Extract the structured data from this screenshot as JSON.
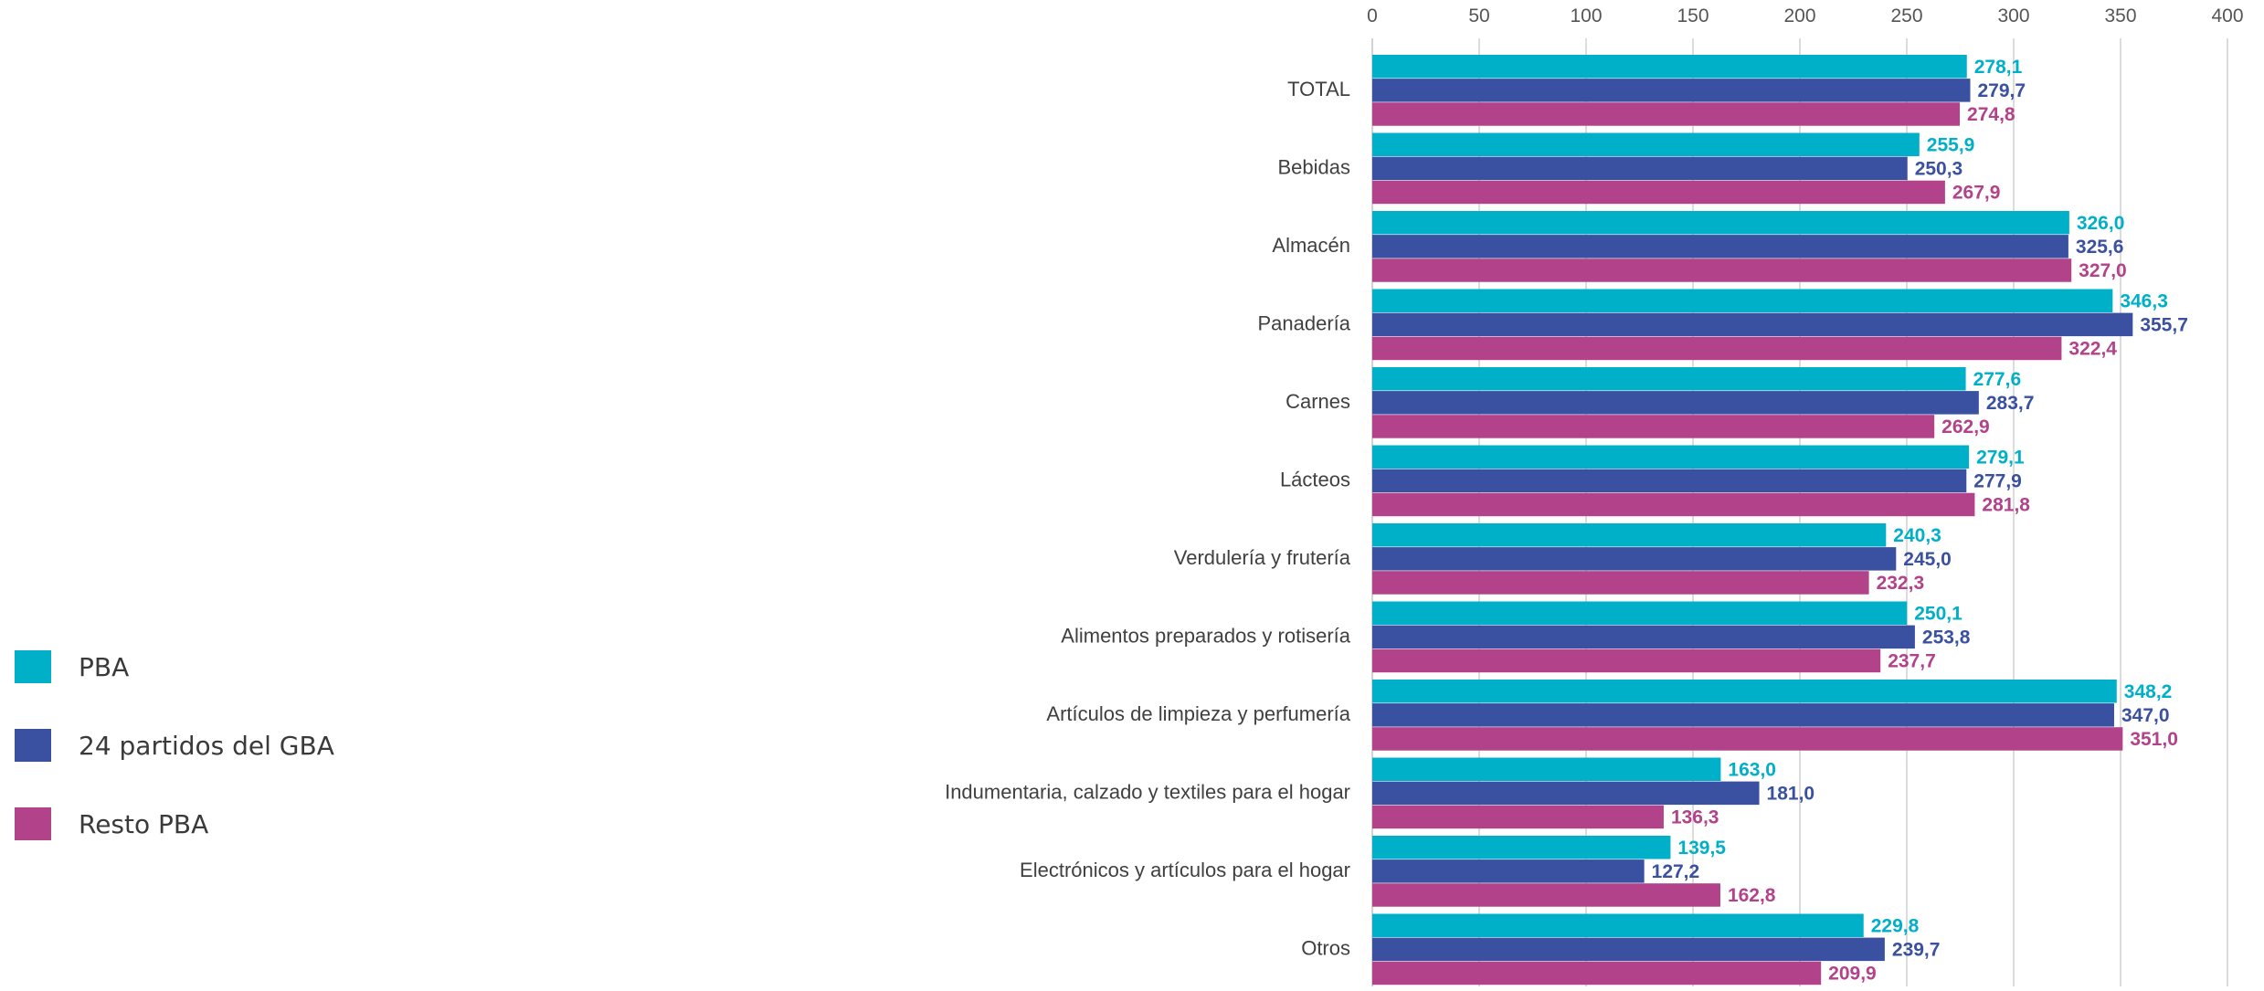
{
  "chart_data": {
    "type": "bar",
    "orientation": "horizontal",
    "categories": [
      "TOTAL",
      "Bebidas",
      "Almacén",
      "Panadería",
      "Carnes",
      "Lácteos",
      "Verdulería y frutería",
      "Alimentos preparados y rotisería",
      "Artículos de limpieza y perfumería",
      "Indumentaria, calzado y textiles para el hogar",
      "Electrónicos y artículos para el hogar",
      "Otros"
    ],
    "series": [
      {
        "name": "PBA",
        "color": "#00b0c8",
        "values": [
          278.1,
          255.9,
          326.0,
          346.3,
          277.6,
          279.1,
          240.3,
          250.1,
          348.2,
          163.0,
          139.5,
          229.8
        ],
        "labels": [
          "278,1",
          "255,9",
          "326,0",
          "346,3",
          "277,6",
          "279,1",
          "240,3",
          "250,1",
          "348,2",
          "163,0",
          "139,5",
          "229,8"
        ]
      },
      {
        "name": "24 partidos del GBA",
        "color": "#3a50a0",
        "values": [
          279.7,
          250.3,
          325.6,
          355.7,
          283.7,
          277.9,
          245.0,
          253.8,
          347.0,
          181.0,
          127.2,
          239.7
        ],
        "labels": [
          "279,7",
          "250,3",
          "325,6",
          "355,7",
          "283,7",
          "277,9",
          "245,0",
          "253,8",
          "347,0",
          "181,0",
          "127,2",
          "239,7"
        ]
      },
      {
        "name": "Resto PBA",
        "color": "#b2428a",
        "values": [
          274.8,
          267.9,
          327.0,
          322.4,
          262.9,
          281.8,
          232.3,
          237.7,
          351.0,
          136.3,
          162.8,
          209.9
        ],
        "labels": [
          "274,8",
          "267,9",
          "327,0",
          "322,4",
          "262,9",
          "281,8",
          "232,3",
          "237,7",
          "351,0",
          "136,3",
          "162,8",
          "209,9"
        ]
      }
    ],
    "xlim": [
      0,
      400
    ],
    "xticks": [
      0,
      50,
      100,
      150,
      200,
      250,
      300,
      350,
      400
    ],
    "x_axis_position": "top",
    "grid": true,
    "legend_placement": "left"
  }
}
